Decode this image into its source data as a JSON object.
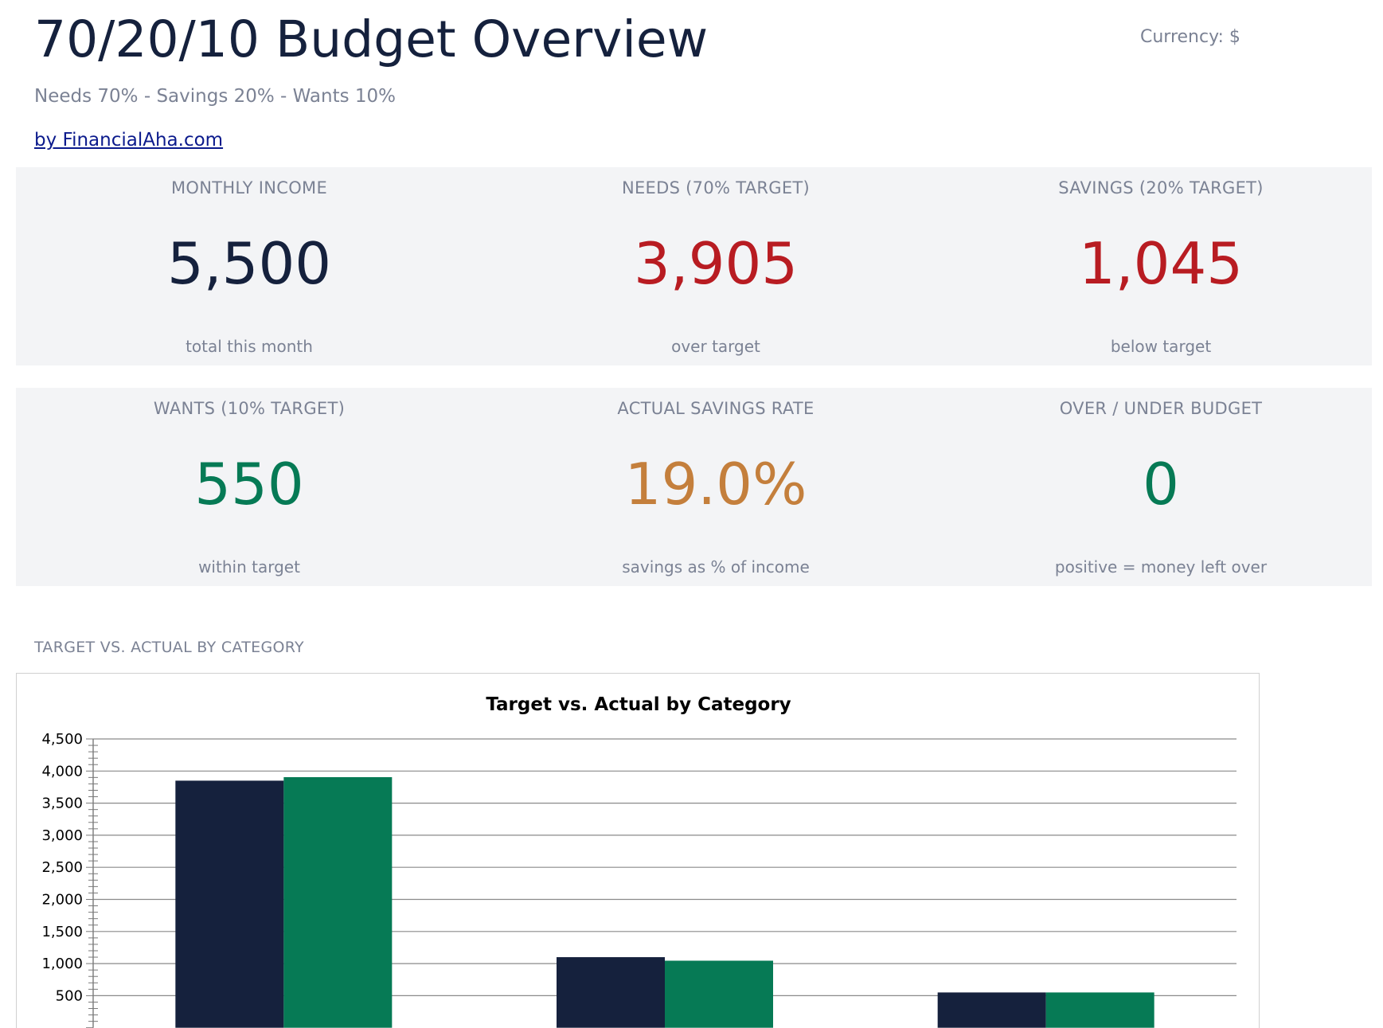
{
  "header": {
    "title": "70/20/10 Budget Overview",
    "currency": "Currency: $",
    "subtitle": "Needs 70% - Savings 20% - Wants 10%",
    "byline": "by FinancialAha.com"
  },
  "kpis": [
    {
      "label": "MONTHLY INCOME",
      "value": "5,500",
      "note": "total this month",
      "color": "#15213d"
    },
    {
      "label": "NEEDS (70% TARGET)",
      "value": "3,905",
      "note": "over target",
      "color": "#b81c22"
    },
    {
      "label": "SAVINGS (20% TARGET)",
      "value": "1,045",
      "note": "below target",
      "color": "#b81c22"
    },
    {
      "label": "WANTS (10% TARGET)",
      "value": "550",
      "note": "within target",
      "color": "#067a55"
    },
    {
      "label": "ACTUAL SAVINGS RATE",
      "value": "19.0%",
      "note": "savings as % of income",
      "color": "#c47f3c"
    },
    {
      "label": "OVER / UNDER BUDGET",
      "value": "0",
      "note": "positive = money left over",
      "color": "#067a55"
    }
  ],
  "section": {
    "label": "TARGET VS. ACTUAL BY CATEGORY"
  },
  "chart_data": {
    "type": "bar",
    "title": "Target vs. Actual by Category",
    "xlabel": "",
    "ylabel": "",
    "ylim": [
      0,
      4500
    ],
    "yticks": [
      500,
      1000,
      1500,
      2000,
      2500,
      3000,
      3500,
      4000,
      4500
    ],
    "ytick_labels": [
      "500",
      "1,000",
      "1,500",
      "2,000",
      "2,500",
      "3,000",
      "3,500",
      "4,000",
      "4,500"
    ],
    "grid": true,
    "legend": "none",
    "categories": [
      "",
      "",
      ""
    ],
    "series": [
      {
        "values": [
          3850,
          1100,
          550
        ],
        "color": "#15213d"
      },
      {
        "values": [
          3905,
          1045,
          550
        ],
        "color": "#067a55"
      }
    ]
  }
}
